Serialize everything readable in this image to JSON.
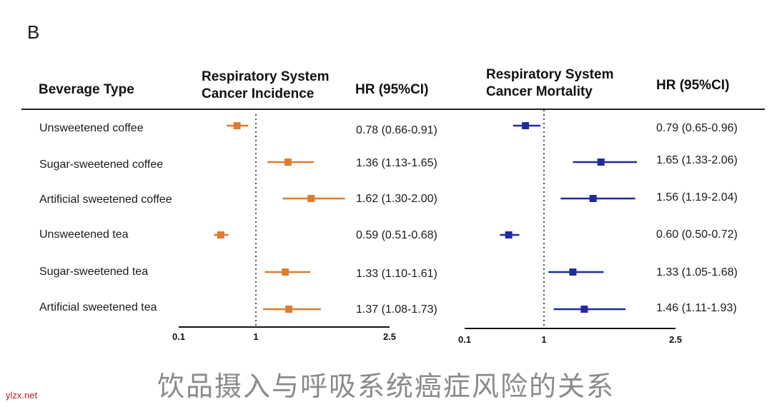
{
  "panel_letter": "B",
  "headers": {
    "beverage_type": "Beverage Type",
    "incidence_line1": "Respiratory System",
    "incidence_line2": "Cancer Incidence",
    "hr_left": "HR (95%CI)",
    "mortality_line1": "Respiratory System",
    "mortality_line2": "Cancer Mortality",
    "hr_right": "HR (95%CI)"
  },
  "rows": [
    "Unsweetened coffee",
    "Sugar-sweetened coffee",
    "Artificial sweetened coffee",
    "Unsweetened tea",
    "Sugar-sweetened tea",
    "Artificial sweetened tea"
  ],
  "chart_data": [
    {
      "type": "forest",
      "title": "Respiratory System Cancer Incidence",
      "x_ticks": [
        "0.1",
        "1",
        "2.5"
      ],
      "xlim": [
        0.1,
        2.5
      ],
      "reference": 1,
      "color": "#e07b2e",
      "points": [
        {
          "label": "Unsweetened coffee",
          "hr": 0.78,
          "lo": 0.66,
          "hi": 0.91,
          "text": "0.78 (0.66-0.91)"
        },
        {
          "label": "Sugar-sweetened coffee",
          "hr": 1.36,
          "lo": 1.13,
          "hi": 1.65,
          "text": "1.36 (1.13-1.65)"
        },
        {
          "label": "Artificial sweetened coffee",
          "hr": 1.62,
          "lo": 1.3,
          "hi": 2.0,
          "text": "1.62 (1.30-2.00)"
        },
        {
          "label": "Unsweetened tea",
          "hr": 0.59,
          "lo": 0.51,
          "hi": 0.68,
          "text": "0.59 (0.51-0.68)"
        },
        {
          "label": "Sugar-sweetened tea",
          "hr": 1.33,
          "lo": 1.1,
          "hi": 1.61,
          "text": "1.33 (1.10-1.61)"
        },
        {
          "label": "Artificial sweetened tea",
          "hr": 1.37,
          "lo": 1.08,
          "hi": 1.73,
          "text": "1.37 (1.08-1.73)"
        }
      ]
    },
    {
      "type": "forest",
      "title": "Respiratory System Cancer Mortality",
      "x_ticks": [
        "0.1",
        "1",
        "2.5"
      ],
      "xlim": [
        0.1,
        2.5
      ],
      "reference": 1,
      "color": "#1f2a9c",
      "points": [
        {
          "label": "Unsweetened coffee",
          "hr": 0.79,
          "lo": 0.65,
          "hi": 0.96,
          "text": "0.79 (0.65-0.96)"
        },
        {
          "label": "Sugar-sweetened coffee",
          "hr": 1.65,
          "lo": 1.33,
          "hi": 2.06,
          "text": "1.65 (1.33-2.06)"
        },
        {
          "label": "Artificial sweetened coffee",
          "hr": 1.56,
          "lo": 1.19,
          "hi": 2.04,
          "text": "1.56 (1.19-2.04)"
        },
        {
          "label": "Unsweetened tea",
          "hr": 0.6,
          "lo": 0.5,
          "hi": 0.72,
          "text": "0.60 (0.50-0.72)"
        },
        {
          "label": "Sugar-sweetened tea",
          "hr": 1.33,
          "lo": 1.05,
          "hi": 1.68,
          "text": "1.33 (1.05-1.68)"
        },
        {
          "label": "Artificial sweetened tea",
          "hr": 1.46,
          "lo": 1.11,
          "hi": 1.93,
          "text": "1.46 (1.11-1.93)"
        }
      ]
    }
  ],
  "caption": "饮品摄入与呼吸系统癌症风险的关系",
  "watermark": "ylzx.net"
}
